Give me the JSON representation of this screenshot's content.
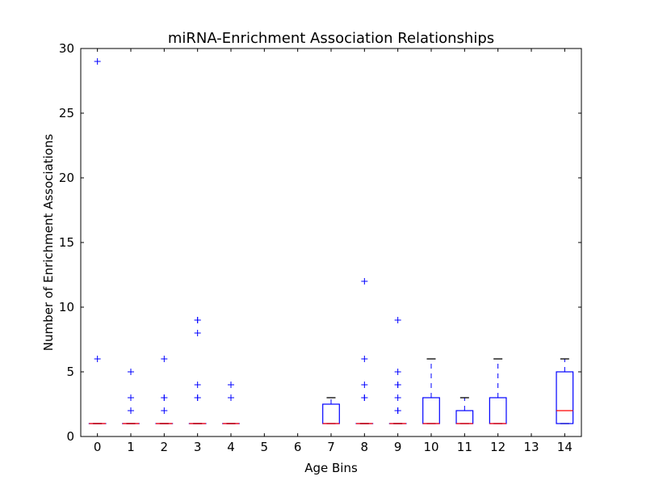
{
  "chart_data": {
    "type": "box",
    "title": "miRNA-Enrichment Association Relationships",
    "xlabel": "Age Bins",
    "ylabel": "Number of Enrichment Associations",
    "xlim": [
      -0.5,
      14.5
    ],
    "ylim": [
      0,
      30
    ],
    "categories": [
      "0",
      "1",
      "2",
      "3",
      "4",
      "5",
      "6",
      "7",
      "8",
      "9",
      "10",
      "11",
      "12",
      "13",
      "14"
    ],
    "yticks": [
      0,
      5,
      10,
      15,
      20,
      25,
      30
    ],
    "grid": false,
    "colors": {
      "box": "#0000ff",
      "median": "#ff0000",
      "whisker": "#0000ff",
      "cap": "#000000",
      "flier": "#0000ff",
      "axes": "#000000"
    },
    "boxes": [
      {
        "category": "0",
        "q1": 1,
        "median": 1,
        "q3": 1,
        "whislo": 1,
        "whishi": 1,
        "fliers": [
          6,
          29
        ]
      },
      {
        "category": "1",
        "q1": 1,
        "median": 1,
        "q3": 1,
        "whislo": 1,
        "whishi": 1,
        "fliers": [
          2,
          3,
          5,
          5
        ]
      },
      {
        "category": "2",
        "q1": 1,
        "median": 1,
        "q3": 1,
        "whislo": 1,
        "whishi": 1,
        "fliers": [
          2,
          3,
          3,
          6
        ]
      },
      {
        "category": "3",
        "q1": 1,
        "median": 1,
        "q3": 1,
        "whislo": 1,
        "whishi": 1,
        "fliers": [
          3,
          3,
          4,
          8,
          9,
          9
        ]
      },
      {
        "category": "4",
        "q1": 1,
        "median": 1,
        "q3": 1,
        "whislo": 1,
        "whishi": 1,
        "fliers": [
          3,
          4
        ]
      },
      {
        "category": "7",
        "q1": 1,
        "median": 1,
        "q3": 2.5,
        "whislo": 1,
        "whishi": 3,
        "fliers": []
      },
      {
        "category": "8",
        "q1": 1,
        "median": 1,
        "q3": 1,
        "whislo": 1,
        "whishi": 1,
        "fliers": [
          3,
          3,
          4,
          6,
          12
        ]
      },
      {
        "category": "9",
        "q1": 1,
        "median": 1,
        "q3": 1,
        "whislo": 1,
        "whishi": 1,
        "fliers": [
          2,
          2,
          3,
          4,
          4,
          5,
          9
        ]
      },
      {
        "category": "10",
        "q1": 1,
        "median": 1,
        "q3": 3,
        "whislo": 1,
        "whishi": 6,
        "fliers": []
      },
      {
        "category": "11",
        "q1": 1,
        "median": 1,
        "q3": 2,
        "whislo": 1,
        "whishi": 3,
        "fliers": []
      },
      {
        "category": "12",
        "q1": 1,
        "median": 1,
        "q3": 3,
        "whislo": 1,
        "whishi": 6,
        "fliers": []
      },
      {
        "category": "14",
        "q1": 1,
        "median": 2,
        "q3": 5,
        "whislo": 1,
        "whishi": 6,
        "fliers": []
      }
    ]
  }
}
